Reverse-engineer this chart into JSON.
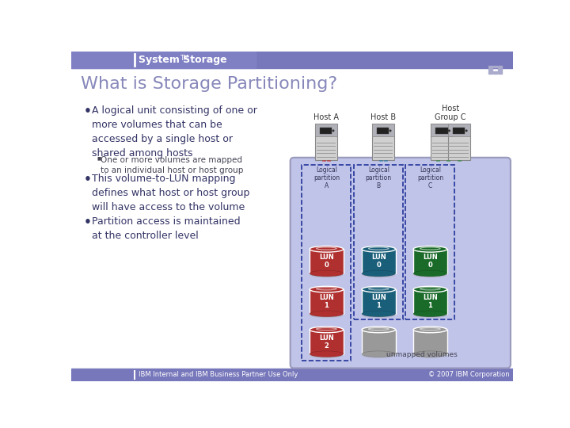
{
  "title": "What is Storage Partitioning?",
  "header_text": "System Storage",
  "header_superscript": "TM",
  "header_bg": "#7777bb",
  "header_text_color": "#ffffff",
  "slide_bg": "#ffffff",
  "footer_bg": "#7777bb",
  "footer_left": "IBM Internal and IBM Business Partner Use Only",
  "footer_right": "© 2007 IBM Corporation",
  "footer_text_color": "#ffffff",
  "title_color": "#8888bb",
  "bullet_main_color": "#333366",
  "bullet_text_color": "#333366",
  "sub_bullet_text_color": "#444455",
  "bullet_points": [
    "A logical unit consisting of one or\nmore volumes that can be\naccessed by a single host or\nshared among hosts",
    "This volume-to-LUN mapping\ndefines what host or host group\nwill have access to the volume",
    "Partition access is maintained\nat the controller level"
  ],
  "sub_bullet": "One or more volumes are mapped\nto an individual host or host group",
  "host_labels": [
    "Host A",
    "Host B",
    "Host\nGroup C"
  ],
  "partition_labels": [
    "Logical\npartition\nA",
    "Logical\npartition\nB",
    "Logical\npartition\nC"
  ],
  "lun_colors_A": [
    "#b03030",
    "#b03030",
    "#b03030"
  ],
  "lun_colors_B": [
    "#1a5f7a",
    "#1a5f7a",
    "#999999"
  ],
  "lun_colors_C": [
    "#1a6b2a",
    "#1a6b2a",
    "#999999"
  ],
  "lun_labels_A": [
    "LUN\n0",
    "LUN\n1",
    "LUN\n2"
  ],
  "lun_labels_B": [
    "LUN\n0",
    "LUN\n1",
    ""
  ],
  "lun_labels_C": [
    "LUN\n0",
    "LUN\n1",
    ""
  ],
  "storage_bg": "#c0c4e8",
  "unmapped_label": "unmapped volumes",
  "cable_color_A": "#cc2222",
  "cable_color_B": "#1a7aaa",
  "cable_color_C": "#228833"
}
